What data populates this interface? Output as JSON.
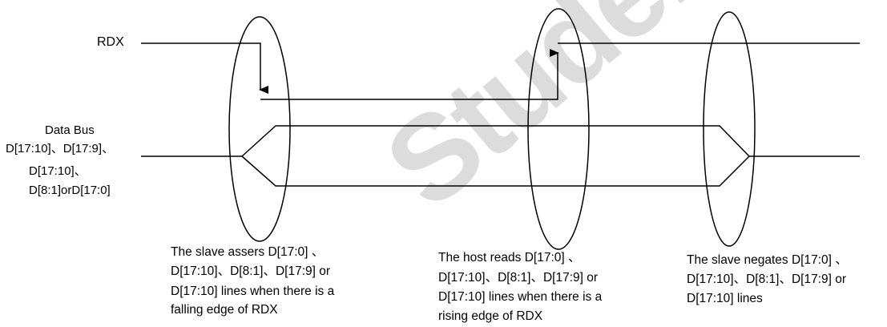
{
  "watermark": "Student",
  "signals": {
    "rdx_label": "RDX",
    "data_bus_label": [
      "Data Bus",
      "D[17:10]、D[17:9]、",
      "D[17:10]、",
      "D[8:1]orD[17:0]"
    ]
  },
  "descriptions": [
    {
      "lines": [
        "The slave assers D[17:0] 、",
        "D[17:10]、D[8:1]、D[17:9] or",
        "D[17:10] lines when there is a",
        "falling edge of RDX"
      ]
    },
    {
      "lines": [
        "The host reads D[17:0] 、",
        "D[17:10]、D[8:1]、D[17:9] or",
        "D[17:10] lines when there is a",
        "rising edge of RDX"
      ]
    },
    {
      "lines": [
        "The slave  negates D[17:0] 、",
        "D[17:10]、D[8:1]、D[17:9] or",
        "D[17:10] lines"
      ]
    }
  ],
  "colors": {
    "line": "#000000",
    "watermark": "#dcdcdc"
  }
}
